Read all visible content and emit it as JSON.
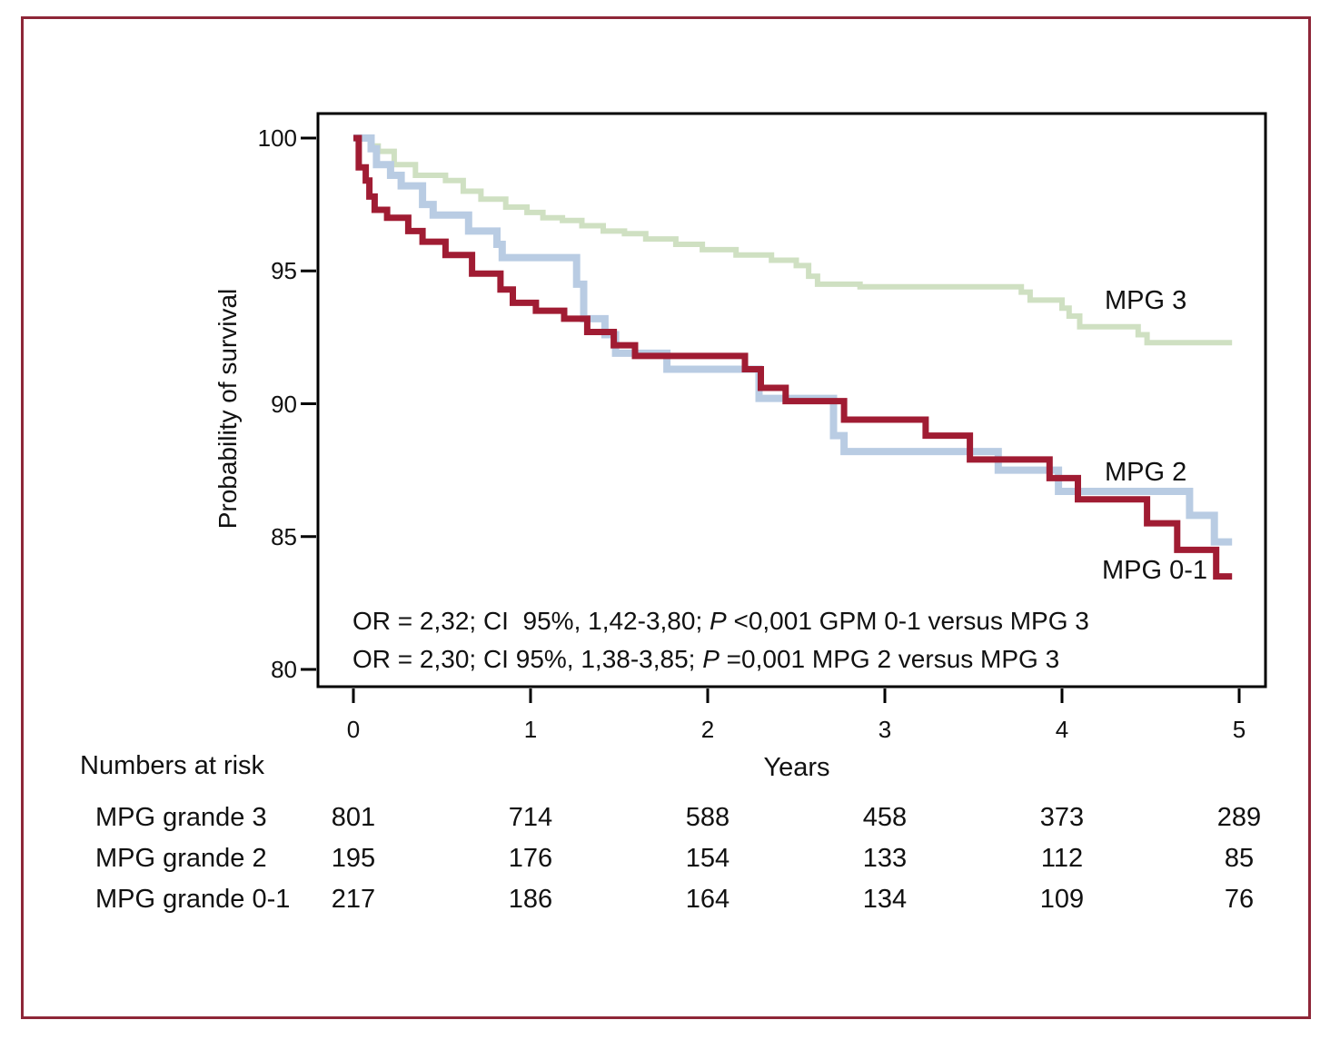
{
  "figure": {
    "border_color": "#8e2638",
    "plot_border_color": "#000000"
  },
  "chart": {
    "ylabel": "Probability of survival",
    "xlabel": "Years",
    "yticks": [
      100,
      95,
      90,
      85,
      80
    ],
    "xticks": [
      0,
      1,
      2,
      3,
      4,
      5
    ],
    "annotations": {
      "line1": {
        "pre": "OR = 2,32; CI  95%, 1,42-3,80; ",
        "italic": "P",
        "post": " <0,001 GPM 0-1 versus MPG 3"
      },
      "line2": {
        "pre": "OR = 2,30; CI 95%, 1,38-3,85; ",
        "italic": "P",
        "post": " =0,001 MPG 2 versus MPG 3"
      }
    },
    "curve_labels": {
      "mpg3": "MPG 3",
      "mpg2": "MPG 2",
      "mpg01": "MPG 0-1"
    }
  },
  "chart_data": {
    "type": "line",
    "subtype": "kaplan-meier-step",
    "title": "",
    "xlabel": "Years",
    "ylabel": "Probability of survival",
    "xlim": [
      0,
      5
    ],
    "ylim": [
      80,
      100
    ],
    "grid": false,
    "legend_position": "inline-right-labels",
    "series": [
      {
        "name": "MPG 3",
        "color": "#cfe0c2",
        "points": [
          [
            0,
            100
          ],
          [
            0.1,
            99.7
          ],
          [
            0.14,
            99.5
          ],
          [
            0.23,
            99.0
          ],
          [
            0.35,
            98.6
          ],
          [
            0.52,
            98.4
          ],
          [
            0.62,
            98.0
          ],
          [
            0.72,
            97.7
          ],
          [
            0.86,
            97.4
          ],
          [
            0.98,
            97.2
          ],
          [
            1.07,
            97.0
          ],
          [
            1.18,
            96.9
          ],
          [
            1.29,
            96.7
          ],
          [
            1.41,
            96.5
          ],
          [
            1.53,
            96.4
          ],
          [
            1.65,
            96.2
          ],
          [
            1.82,
            96.0
          ],
          [
            1.97,
            95.8
          ],
          [
            2.16,
            95.6
          ],
          [
            2.36,
            95.4
          ],
          [
            2.5,
            95.2
          ],
          [
            2.57,
            94.8
          ],
          [
            2.62,
            94.5
          ],
          [
            2.86,
            94.4
          ],
          [
            3.77,
            94.2
          ],
          [
            3.82,
            93.9
          ],
          [
            4.0,
            93.6
          ],
          [
            4.04,
            93.3
          ],
          [
            4.1,
            92.9
          ],
          [
            4.43,
            92.6
          ],
          [
            4.48,
            92.3
          ],
          [
            4.96,
            92.3
          ]
        ]
      },
      {
        "name": "MPG 2",
        "color": "#b9cce3",
        "points": [
          [
            0,
            100
          ],
          [
            0.1,
            99.6
          ],
          [
            0.13,
            99.0
          ],
          [
            0.21,
            98.6
          ],
          [
            0.27,
            98.2
          ],
          [
            0.39,
            97.5
          ],
          [
            0.45,
            97.1
          ],
          [
            0.65,
            96.5
          ],
          [
            0.81,
            96.0
          ],
          [
            0.84,
            95.5
          ],
          [
            1.26,
            94.5
          ],
          [
            1.3,
            93.2
          ],
          [
            1.42,
            92.6
          ],
          [
            1.48,
            91.9
          ],
          [
            1.77,
            91.3
          ],
          [
            2.29,
            90.2
          ],
          [
            2.71,
            88.8
          ],
          [
            2.77,
            88.2
          ],
          [
            3.64,
            87.5
          ],
          [
            3.98,
            86.7
          ],
          [
            4.72,
            85.8
          ],
          [
            4.86,
            84.8
          ],
          [
            4.96,
            84.8
          ]
        ]
      },
      {
        "name": "MPG 0-1",
        "color": "#a01c33",
        "points": [
          [
            0,
            100
          ],
          [
            0.03,
            98.9
          ],
          [
            0.07,
            98.4
          ],
          [
            0.09,
            97.8
          ],
          [
            0.12,
            97.3
          ],
          [
            0.19,
            97.0
          ],
          [
            0.31,
            96.5
          ],
          [
            0.39,
            96.1
          ],
          [
            0.52,
            95.6
          ],
          [
            0.67,
            94.9
          ],
          [
            0.83,
            94.3
          ],
          [
            0.9,
            93.8
          ],
          [
            1.03,
            93.5
          ],
          [
            1.19,
            93.2
          ],
          [
            1.32,
            92.7
          ],
          [
            1.47,
            92.2
          ],
          [
            1.59,
            91.8
          ],
          [
            2.21,
            91.3
          ],
          [
            2.3,
            90.6
          ],
          [
            2.44,
            90.1
          ],
          [
            2.77,
            89.4
          ],
          [
            3.23,
            88.8
          ],
          [
            3.48,
            87.9
          ],
          [
            3.93,
            87.2
          ],
          [
            4.09,
            86.4
          ],
          [
            4.48,
            85.5
          ],
          [
            4.65,
            84.5
          ],
          [
            4.87,
            83.5
          ],
          [
            4.96,
            83.5
          ]
        ]
      }
    ]
  },
  "risk_table": {
    "title": "Numbers at risk",
    "rows": [
      {
        "label": "MPG grande 3",
        "values": [
          "801",
          "714",
          "588",
          "458",
          "373",
          "289"
        ]
      },
      {
        "label": "MPG grande 2",
        "values": [
          "195",
          "176",
          "154",
          "133",
          "112",
          "85"
        ]
      },
      {
        "label": "MPG grande 0-1",
        "values": [
          "217",
          "186",
          "164",
          "134",
          "109",
          "76"
        ]
      }
    ]
  }
}
